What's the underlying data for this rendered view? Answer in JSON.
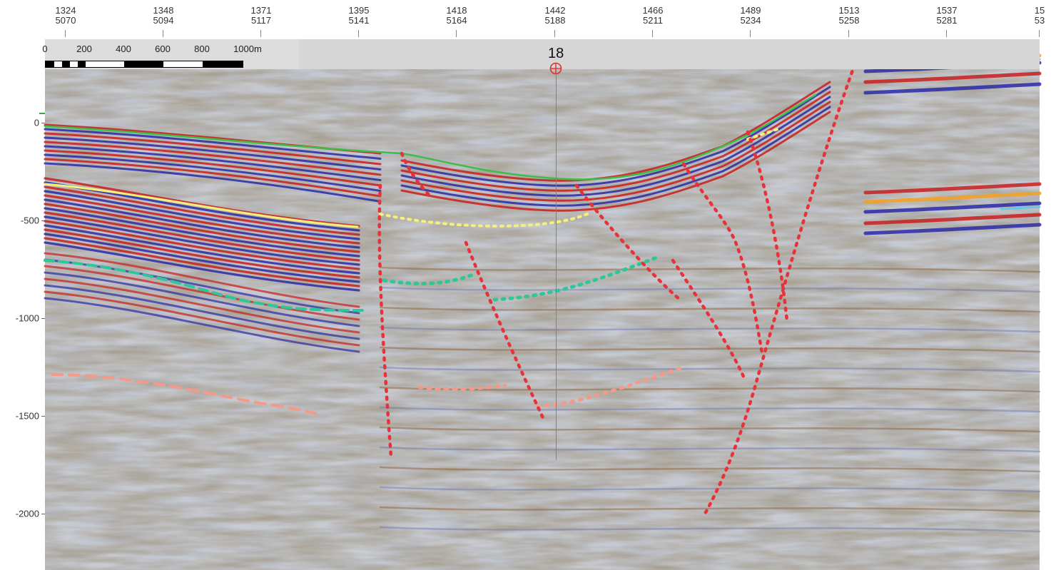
{
  "top_axis": {
    "ticks": [
      {
        "trace": "1324",
        "cdp": "5070"
      },
      {
        "trace": "1348",
        "cdp": "5094"
      },
      {
        "trace": "1371",
        "cdp": "5117"
      },
      {
        "trace": "1395",
        "cdp": "5141"
      },
      {
        "trace": "1418",
        "cdp": "5164"
      },
      {
        "trace": "1442",
        "cdp": "5188"
      },
      {
        "trace": "1466",
        "cdp": "5211"
      },
      {
        "trace": "1489",
        "cdp": "5234"
      },
      {
        "trace": "1513",
        "cdp": "5258"
      },
      {
        "trace": "1537",
        "cdp": "5281"
      },
      {
        "trace": "15",
        "cdp": "53"
      }
    ]
  },
  "left_axis": {
    "labels": [
      "0",
      "-500",
      "-1000",
      "-1500",
      "-2000"
    ]
  },
  "scale_bar": {
    "labels": [
      "0",
      "200",
      "400",
      "600",
      "800",
      "1000m"
    ]
  },
  "well": {
    "name": "18",
    "color": "#e03030"
  },
  "colors": {
    "fault": "#e8323a",
    "horizon_green": "#3bbf4a",
    "horizon_yellow": "#f5f07a",
    "horizon_teal": "#2ec79a",
    "horizon_salmon": "#f59a8a",
    "positive_amplitude": "#c81e1e",
    "negative_amplitude": "#2a2aa8",
    "background": "#b8bcc6"
  }
}
